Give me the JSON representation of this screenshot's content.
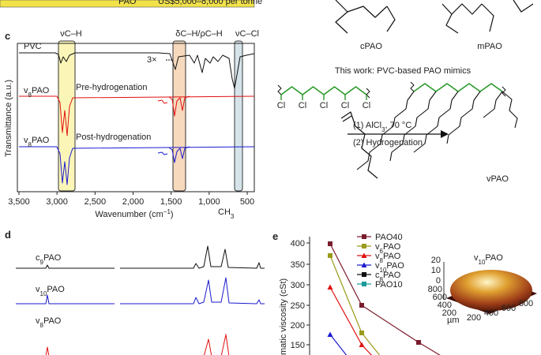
{
  "header": {
    "row": "PAO",
    "price": "US$5,000–8,000 per tonne"
  },
  "panel_c": {
    "label": "c",
    "bands": [
      "νC–H",
      "δC–H/ρC–H",
      "νC–Cl"
    ],
    "traces": [
      {
        "name": [
          "PVC"
        ]
      },
      {
        "name": [
          "v",
          "8",
          "PAO"
        ],
        "note": "Pre-hydrogenation"
      },
      {
        "name": [
          "v",
          "8",
          "PAO"
        ],
        "note": "Post-hydrogenation"
      }
    ],
    "scale_note": "3×",
    "y_label": "Transmittance (a.u.)",
    "x_label": [
      "Wavenumber (cm",
      "−1",
      ")"
    ],
    "xticks": [
      "3,500",
      "3,000",
      "2,500",
      "2,000",
      "1,500",
      "1,000",
      "500"
    ]
  },
  "structures": {
    "cpao": "cPAO",
    "mpao": "mPAO",
    "title": "This work: PVC-based PAO mimics",
    "cl": "Cl",
    "step1": [
      "(1) AlCl",
      "3",
      ", 70 °C"
    ],
    "step2": "(2) Hydrogenation",
    "product": "vPAO"
  },
  "panel_d": {
    "label": "d",
    "peak": [
      "CH",
      "3"
    ],
    "traces": [
      [
        "c",
        "9",
        "PAO"
      ],
      [
        "v",
        "10",
        "PAO"
      ],
      [
        "v",
        "8",
        "PAO"
      ]
    ]
  },
  "panel_e": {
    "label": "e",
    "y_label": "matic viscosity (cSt)",
    "yticks": [
      "400",
      "350",
      "300",
      "250",
      "200",
      "150"
    ],
    "legend": [
      [
        "PAO40"
      ],
      [
        "v",
        "6",
        "PAO"
      ],
      [
        "v",
        "8",
        "PAO"
      ],
      [
        "v",
        "10",
        "PAO"
      ],
      [
        "c",
        "8",
        "PAO"
      ],
      [
        "PAO10"
      ]
    ],
    "inset": {
      "title": [
        "v",
        "10",
        "PAO"
      ],
      "z_ticks": [
        "20",
        "10",
        "0"
      ],
      "y_ticks": [
        "800",
        "600",
        "400",
        "200"
      ],
      "unit": "µm",
      "x_ticks": [
        "200",
        "400",
        "600",
        "800"
      ]
    }
  }
}
